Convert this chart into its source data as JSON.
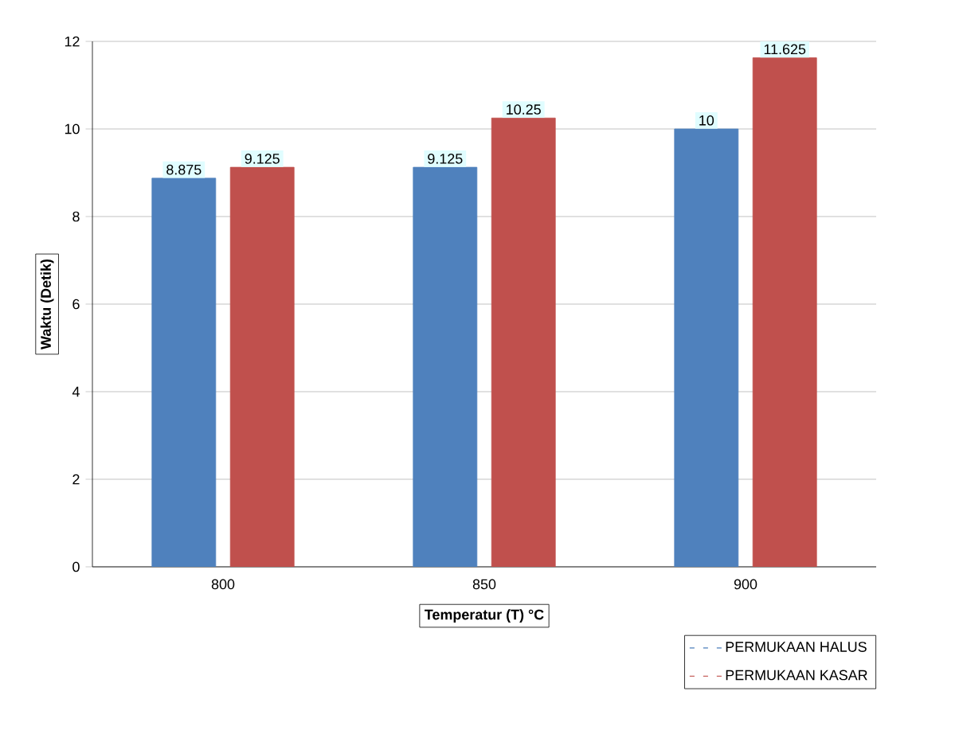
{
  "chart_data": {
    "type": "bar",
    "xlabel": "Temperatur (T) °C",
    "ylabel": "Waktu (Detik)",
    "categories": [
      "800",
      "850",
      "900"
    ],
    "series": [
      {
        "name": "PERMUKAAN HALUS",
        "color": "#4f81bd",
        "values": [
          8.875,
          9.125,
          10
        ]
      },
      {
        "name": "PERMUKAAN KASAR",
        "color": "#c0504d",
        "values": [
          9.125,
          10.25,
          11.625
        ]
      }
    ],
    "ylim": [
      0,
      12
    ],
    "yticks": [
      0,
      2,
      4,
      6,
      8,
      10,
      12
    ],
    "grid": "y",
    "legend": "bottom right",
    "data_labels": true
  }
}
